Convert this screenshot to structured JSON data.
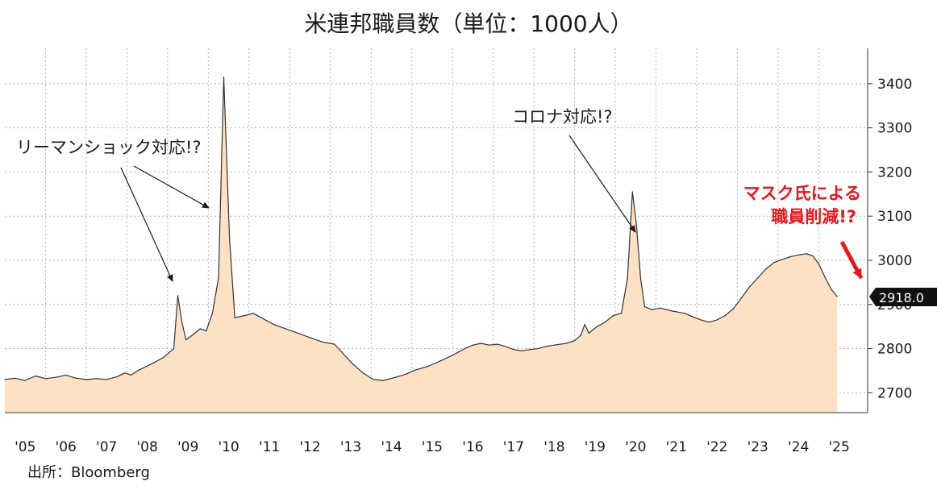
{
  "title": "米連邦職員数（単位：1000人）",
  "source": "出所：Bloomberg",
  "chart_data": {
    "type": "area",
    "xlim": [
      2005.0,
      2026.2
    ],
    "ylim": [
      2655,
      3480
    ],
    "y_ticks": [
      2700,
      2800,
      2900,
      3000,
      3100,
      3200,
      3300,
      3400
    ],
    "x_tick_labels": [
      "'05",
      "'06",
      "'07",
      "'08",
      "'09",
      "'10",
      "'11",
      "'12",
      "'13",
      "'14",
      "'15",
      "'16",
      "'17",
      "'18",
      "'19",
      "'20",
      "'21",
      "'22",
      "'23",
      "'24",
      "'25"
    ],
    "grid": true,
    "fill_color": "#fce1c4",
    "line_color": "#333333",
    "last_value_label": "2918.0",
    "points": [
      [
        2005.0,
        2730
      ],
      [
        2005.25,
        2733
      ],
      [
        2005.5,
        2728
      ],
      [
        2005.75,
        2738
      ],
      [
        2006.0,
        2732
      ],
      [
        2006.25,
        2735
      ],
      [
        2006.5,
        2740
      ],
      [
        2006.75,
        2733
      ],
      [
        2007.0,
        2730
      ],
      [
        2007.25,
        2732
      ],
      [
        2007.5,
        2730
      ],
      [
        2007.75,
        2736
      ],
      [
        2007.95,
        2745
      ],
      [
        2008.1,
        2740
      ],
      [
        2008.3,
        2752
      ],
      [
        2008.6,
        2765
      ],
      [
        2008.9,
        2780
      ],
      [
        2009.15,
        2800
      ],
      [
        2009.25,
        2920
      ],
      [
        2009.35,
        2860
      ],
      [
        2009.45,
        2820
      ],
      [
        2009.6,
        2830
      ],
      [
        2009.8,
        2845
      ],
      [
        2009.95,
        2840
      ],
      [
        2010.1,
        2880
      ],
      [
        2010.25,
        2960
      ],
      [
        2010.38,
        3415
      ],
      [
        2010.52,
        3050
      ],
      [
        2010.65,
        2870
      ],
      [
        2010.9,
        2875
      ],
      [
        2011.1,
        2880
      ],
      [
        2011.3,
        2870
      ],
      [
        2011.6,
        2855
      ],
      [
        2011.9,
        2845
      ],
      [
        2012.2,
        2835
      ],
      [
        2012.5,
        2825
      ],
      [
        2012.8,
        2815
      ],
      [
        2013.1,
        2810
      ],
      [
        2013.3,
        2790
      ],
      [
        2013.55,
        2765
      ],
      [
        2013.8,
        2745
      ],
      [
        2014.05,
        2730
      ],
      [
        2014.3,
        2728
      ],
      [
        2014.6,
        2735
      ],
      [
        2014.85,
        2742
      ],
      [
        2015.1,
        2752
      ],
      [
        2015.4,
        2760
      ],
      [
        2015.7,
        2772
      ],
      [
        2016.0,
        2785
      ],
      [
        2016.3,
        2800
      ],
      [
        2016.5,
        2808
      ],
      [
        2016.7,
        2812
      ],
      [
        2016.9,
        2808
      ],
      [
        2017.1,
        2810
      ],
      [
        2017.3,
        2805
      ],
      [
        2017.5,
        2798
      ],
      [
        2017.7,
        2795
      ],
      [
        2017.9,
        2798
      ],
      [
        2018.1,
        2800
      ],
      [
        2018.3,
        2805
      ],
      [
        2018.5,
        2808
      ],
      [
        2018.8,
        2812
      ],
      [
        2019.0,
        2818
      ],
      [
        2019.15,
        2830
      ],
      [
        2019.25,
        2855
      ],
      [
        2019.35,
        2835
      ],
      [
        2019.55,
        2850
      ],
      [
        2019.75,
        2860
      ],
      [
        2019.95,
        2875
      ],
      [
        2020.15,
        2880
      ],
      [
        2020.3,
        2960
      ],
      [
        2020.42,
        3155
      ],
      [
        2020.52,
        3080
      ],
      [
        2020.62,
        2960
      ],
      [
        2020.72,
        2895
      ],
      [
        2020.9,
        2888
      ],
      [
        2021.1,
        2892
      ],
      [
        2021.4,
        2885
      ],
      [
        2021.7,
        2880
      ],
      [
        2021.9,
        2872
      ],
      [
        2022.1,
        2865
      ],
      [
        2022.3,
        2860
      ],
      [
        2022.5,
        2865
      ],
      [
        2022.7,
        2875
      ],
      [
        2022.9,
        2890
      ],
      [
        2023.1,
        2915
      ],
      [
        2023.3,
        2940
      ],
      [
        2023.5,
        2960
      ],
      [
        2023.7,
        2980
      ],
      [
        2023.9,
        2995
      ],
      [
        2024.1,
        3002
      ],
      [
        2024.3,
        3008
      ],
      [
        2024.5,
        3012
      ],
      [
        2024.7,
        3015
      ],
      [
        2024.85,
        3010
      ],
      [
        2025.0,
        2992
      ],
      [
        2025.15,
        2962
      ],
      [
        2025.3,
        2935
      ],
      [
        2025.45,
        2918
      ]
    ],
    "annotations": [
      {
        "text": "リーマンショック対応!?",
        "anchor": [
          2006.55,
          3170
        ],
        "color": "#1a1a1a"
      },
      {
        "text": "コロナ対応!?",
        "anchor": [
          2019.8,
          3250
        ],
        "color": "#1a1a1a"
      },
      {
        "text": "マスク氏による",
        "anchor": [
          2025.05,
          3140
        ],
        "color": "#e8141c"
      },
      {
        "text": "職員削減!?",
        "anchor": [
          2025.05,
          3095
        ],
        "color": "#e8141c"
      }
    ]
  }
}
